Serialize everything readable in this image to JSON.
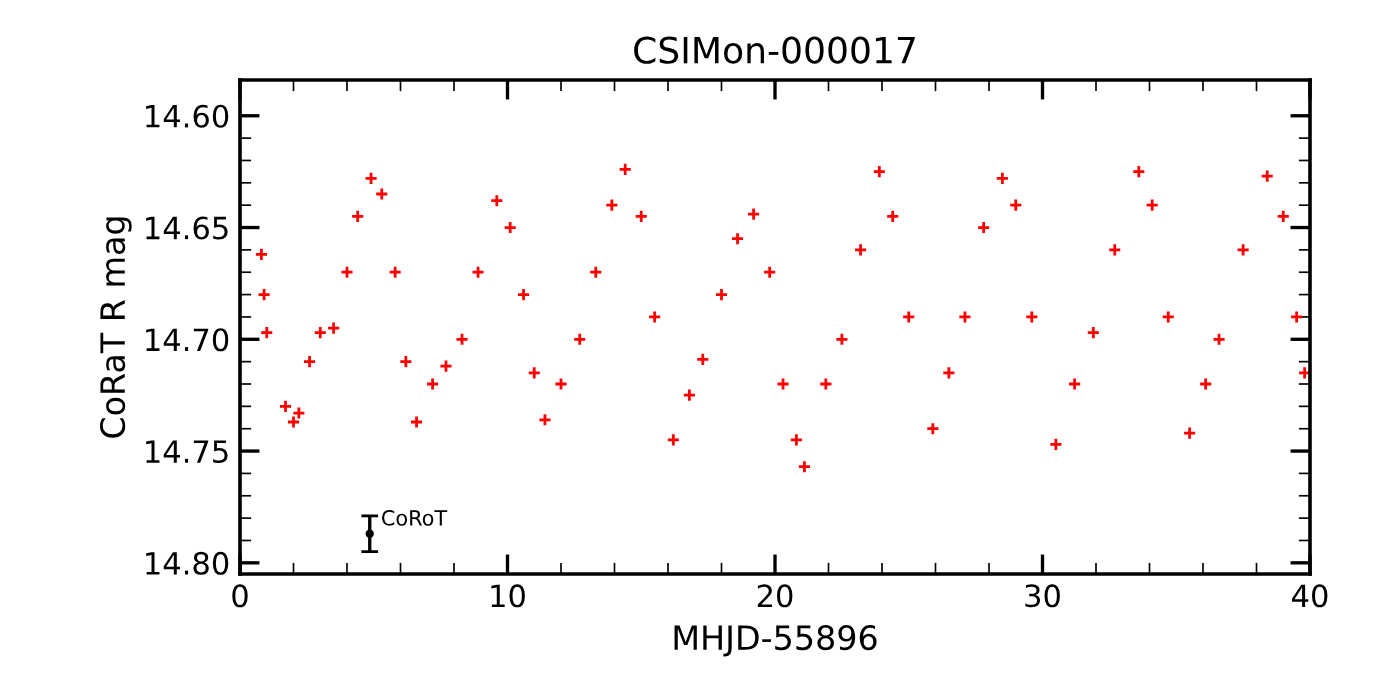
{
  "chart_data": {
    "type": "scatter",
    "title": "CSIMon-000017",
    "xlabel": "MHJD-55896",
    "ylabel": "CoRaT R mag",
    "xlim": [
      0,
      40
    ],
    "ylim": [
      14.805,
      14.584
    ],
    "xticks": [
      0,
      {
        "value": 2,
        "label": null
      },
      {
        "value": 4,
        "label": null
      },
      {
        "value": 6,
        "label": null
      },
      {
        "value": 8,
        "label": null
      },
      10,
      {
        "value": 12,
        "label": null
      },
      {
        "value": 14,
        "label": null
      },
      {
        "value": 16,
        "label": null
      },
      {
        "value": 18,
        "label": null
      },
      20,
      {
        "value": 22,
        "label": null
      },
      {
        "value": 24,
        "label": null
      },
      {
        "value": 26,
        "label": null
      },
      {
        "value": 28,
        "label": null
      },
      30,
      {
        "value": 32,
        "label": null
      },
      {
        "value": 34,
        "label": null
      },
      {
        "value": 36,
        "label": null
      },
      {
        "value": 38,
        "label": null
      },
      40
    ],
    "yticks": [
      {
        "value": 14.6,
        "label": "14.60"
      },
      {
        "value": 14.61,
        "label": null
      },
      {
        "value": 14.62,
        "label": null
      },
      {
        "value": 14.63,
        "label": null
      },
      {
        "value": 14.64,
        "label": null
      },
      {
        "value": 14.65,
        "label": "14.65"
      },
      {
        "value": 14.66,
        "label": null
      },
      {
        "value": 14.67,
        "label": null
      },
      {
        "value": 14.68,
        "label": null
      },
      {
        "value": 14.69,
        "label": null
      },
      {
        "value": 14.7,
        "label": "14.70"
      },
      {
        "value": 14.71,
        "label": null
      },
      {
        "value": 14.72,
        "label": null
      },
      {
        "value": 14.73,
        "label": null
      },
      {
        "value": 14.74,
        "label": null
      },
      {
        "value": 14.75,
        "label": "14.75"
      },
      {
        "value": 14.76,
        "label": null
      },
      {
        "value": 14.77,
        "label": null
      },
      {
        "value": 14.78,
        "label": null
      },
      {
        "value": 14.79,
        "label": null
      },
      {
        "value": 14.8,
        "label": "14.80"
      }
    ],
    "grid": false,
    "marker": "cross",
    "series": [
      {
        "color": "#ff0000",
        "x": [
          0.8,
          0.9,
          1.0,
          1.7,
          2.0,
          2.2,
          2.6,
          3.0,
          3.5,
          4.0,
          4.4,
          4.9,
          5.3,
          5.8,
          6.2,
          6.6,
          7.2,
          7.7,
          8.3,
          8.9,
          9.6,
          10.1,
          10.6,
          11.0,
          11.4,
          12.0,
          12.7,
          13.3,
          13.9,
          14.4,
          15.0,
          15.5,
          16.2,
          16.8,
          17.3,
          18.0,
          18.6,
          19.2,
          19.8,
          20.3,
          20.8,
          21.1,
          21.9,
          22.5,
          23.2,
          23.9,
          24.4,
          25.0,
          25.9,
          26.5,
          27.1,
          27.8,
          28.5,
          29.0,
          29.6,
          30.5,
          31.2,
          31.9,
          32.7,
          33.6,
          34.1,
          34.7,
          35.5,
          36.1,
          36.6,
          37.5,
          38.4,
          39.0,
          39.5,
          39.8
        ],
        "values": [
          14.662,
          14.68,
          14.697,
          14.73,
          14.737,
          14.733,
          14.71,
          14.697,
          14.695,
          14.67,
          14.645,
          14.628,
          14.635,
          14.67,
          14.71,
          14.737,
          14.72,
          14.712,
          14.7,
          14.67,
          14.638,
          14.65,
          14.68,
          14.715,
          14.736,
          14.72,
          14.7,
          14.67,
          14.64,
          14.624,
          14.645,
          14.69,
          14.745,
          14.725,
          14.709,
          14.68,
          14.655,
          14.644,
          14.67,
          14.72,
          14.745,
          14.757,
          14.72,
          14.7,
          14.66,
          14.625,
          14.645,
          14.69,
          14.74,
          14.715,
          14.69,
          14.65,
          14.628,
          14.64,
          14.69,
          14.747,
          14.72,
          14.697,
          14.66,
          14.625,
          14.64,
          14.69,
          14.742,
          14.72,
          14.7,
          14.66,
          14.627,
          14.645,
          14.69,
          14.715
        ]
      },
      {
        "name": "CoRoT",
        "color": "#000000",
        "x": [
          4.85
        ],
        "values": [
          14.787
        ],
        "errors": [
          0.008
        ]
      }
    ]
  }
}
